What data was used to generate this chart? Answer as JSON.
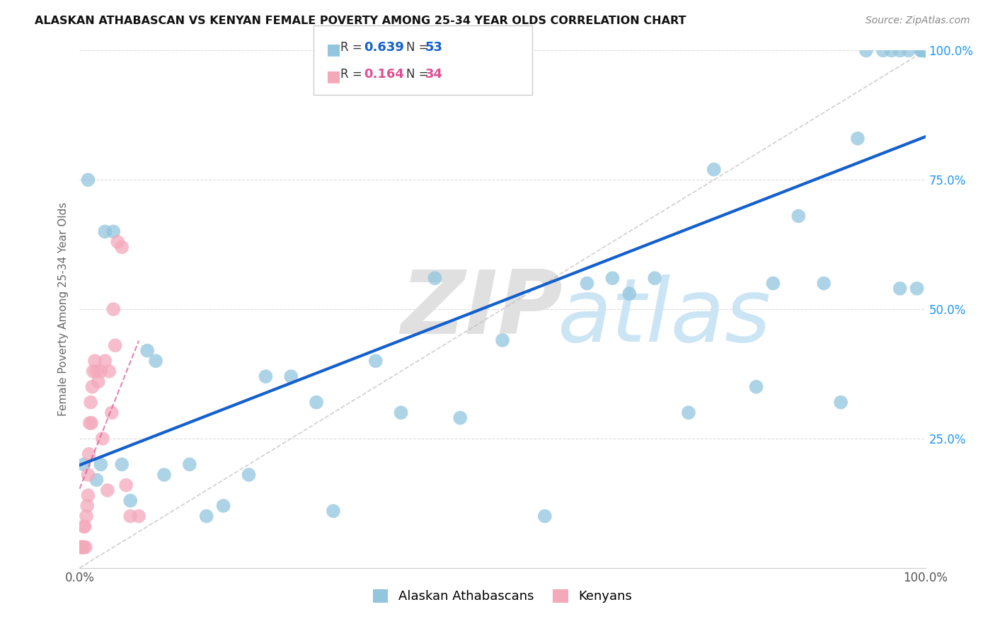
{
  "title": "ALASKAN ATHABASCAN VS KENYAN FEMALE POVERTY AMONG 25-34 YEAR OLDS CORRELATION CHART",
  "source": "Source: ZipAtlas.com",
  "ylabel": "Female Poverty Among 25-34 Year Olds",
  "xlim": [
    0,
    1.0
  ],
  "ylim": [
    0,
    1.0
  ],
  "xticks": [
    0.0,
    0.25,
    0.5,
    0.75,
    1.0
  ],
  "yticks": [
    0.0,
    0.25,
    0.5,
    0.75,
    1.0
  ],
  "xticklabels": [
    "0.0%",
    "",
    "",
    "",
    "100.0%"
  ],
  "yticklabels_right": [
    "",
    "25.0%",
    "50.0%",
    "75.0%",
    "100.0%"
  ],
  "blue_color": "#92C5DE",
  "pink_color": "#F4A9BB",
  "blue_line_color": "#1460CC",
  "pink_line_color": "#E05090",
  "blue_x": [
    0.005,
    0.01,
    0.02,
    0.025,
    0.03,
    0.04,
    0.05,
    0.06,
    0.08,
    0.09,
    0.1,
    0.13,
    0.15,
    0.17,
    0.2,
    0.22,
    0.25,
    0.28,
    0.3,
    0.35,
    0.38,
    0.42,
    0.45,
    0.5,
    0.55,
    0.6,
    0.63,
    0.65,
    0.68,
    0.72,
    0.75,
    0.8,
    0.82,
    0.85,
    0.88,
    0.9,
    0.92,
    0.93,
    0.95,
    0.96,
    0.97,
    0.97,
    0.98,
    0.99,
    0.995,
    0.995,
    0.998,
    0.999,
    0.999,
    1.0,
    1.0,
    1.0,
    1.0
  ],
  "blue_y": [
    0.2,
    0.75,
    0.17,
    0.2,
    0.65,
    0.65,
    0.2,
    0.13,
    0.42,
    0.4,
    0.18,
    0.2,
    0.1,
    0.12,
    0.18,
    0.37,
    0.37,
    0.32,
    0.11,
    0.4,
    0.3,
    0.56,
    0.29,
    0.44,
    0.1,
    0.55,
    0.56,
    0.53,
    0.56,
    0.3,
    0.77,
    0.35,
    0.55,
    0.68,
    0.55,
    0.32,
    0.83,
    1.0,
    1.0,
    1.0,
    0.54,
    1.0,
    1.0,
    0.54,
    1.0,
    1.0,
    1.0,
    1.0,
    1.0,
    1.0,
    1.0,
    1.0,
    1.0
  ],
  "pink_x": [
    0.001,
    0.002,
    0.003,
    0.004,
    0.005,
    0.005,
    0.006,
    0.007,
    0.008,
    0.009,
    0.01,
    0.01,
    0.011,
    0.012,
    0.013,
    0.014,
    0.015,
    0.016,
    0.018,
    0.02,
    0.022,
    0.025,
    0.027,
    0.03,
    0.033,
    0.035,
    0.038,
    0.04,
    0.042,
    0.045,
    0.05,
    0.055,
    0.06,
    0.07
  ],
  "pink_y": [
    0.04,
    0.04,
    0.04,
    0.04,
    0.04,
    0.08,
    0.08,
    0.04,
    0.1,
    0.12,
    0.14,
    0.18,
    0.22,
    0.28,
    0.32,
    0.28,
    0.35,
    0.38,
    0.4,
    0.38,
    0.36,
    0.38,
    0.25,
    0.4,
    0.15,
    0.38,
    0.3,
    0.5,
    0.43,
    0.63,
    0.62,
    0.16,
    0.1,
    0.1
  ]
}
